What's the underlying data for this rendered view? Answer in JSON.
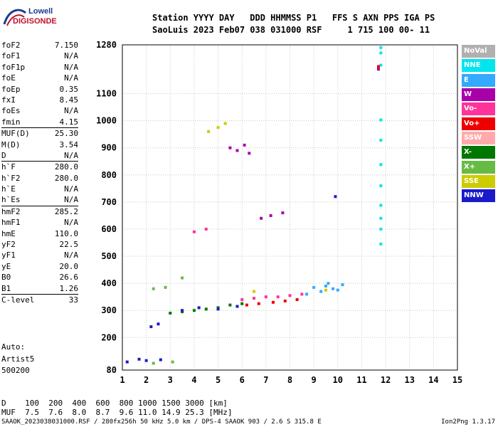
{
  "logo": {
    "line1": "Lowell",
    "line2": "DIGISONDE"
  },
  "header": {
    "line1": "Station YYYY DAY   DDD HHMMSS P1   FFS S AXN PPS IGA PS",
    "line2": "SaoLuis 2023 Feb07 038 031000 RSF     1 715 100 00- 11"
  },
  "params": [
    {
      "k": "foF2",
      "v": "7.150"
    },
    {
      "k": "foF1",
      "v": "N/A"
    },
    {
      "k": "foF1p",
      "v": "N/A"
    },
    {
      "k": "foE",
      "v": "N/A"
    },
    {
      "k": "foEp",
      "v": "0.35"
    },
    {
      "k": "fxI",
      "v": "8.45"
    },
    {
      "k": "foEs",
      "v": "N/A"
    },
    {
      "k": "fmin",
      "v": "4.15"
    },
    {
      "k": "MUF(D)",
      "v": "25.30"
    },
    {
      "k": "M(D)",
      "v": "3.54"
    },
    {
      "k": "D",
      "v": "N/A"
    },
    {
      "k": "h`F",
      "v": "280.0"
    },
    {
      "k": "h`F2",
      "v": "280.0"
    },
    {
      "k": "h`E",
      "v": "N/A"
    },
    {
      "k": "h`Es",
      "v": "N/A"
    },
    {
      "k": "hmF2",
      "v": "285.2"
    },
    {
      "k": "hmF1",
      "v": "N/A"
    },
    {
      "k": "hmE",
      "v": "110.0"
    },
    {
      "k": "yF2",
      "v": "22.5"
    },
    {
      "k": "yF1",
      "v": "N/A"
    },
    {
      "k": "yE",
      "v": "20.0"
    },
    {
      "k": "B0",
      "v": "26.6"
    },
    {
      "k": "B1",
      "v": "1.26"
    },
    {
      "k": "C-level",
      "v": "33"
    }
  ],
  "extra": {
    "auto": "Auto:",
    "artist": "Artist5",
    "code": "500200"
  },
  "legend": [
    {
      "label": "NoVal",
      "color": "#b0b0b0"
    },
    {
      "label": "NNE",
      "color": "#00e5ee"
    },
    {
      "label": "E",
      "color": "#33aaff"
    },
    {
      "label": "W",
      "color": "#aa00aa"
    },
    {
      "label": "Vo-",
      "color": "#ff3399"
    },
    {
      "label": "Vo+",
      "color": "#ee0000"
    },
    {
      "label": "SSW",
      "color": "#ffaaaa"
    },
    {
      "label": "X-",
      "color": "#007700"
    },
    {
      "label": "X+",
      "color": "#66bb44"
    },
    {
      "label": "SSE",
      "color": "#cccc00"
    },
    {
      "label": "NNW",
      "color": "#1a1acc"
    }
  ],
  "chart_data": {
    "type": "scatter",
    "title": "",
    "xlabel": "",
    "ylabel": "",
    "xlim": [
      1,
      15
    ],
    "ylim": [
      80,
      1280
    ],
    "x_ticks": [
      "1",
      "2",
      "3",
      "4",
      "5",
      "6",
      "7",
      "8",
      "9",
      "10",
      "11",
      "12",
      "13",
      "14",
      "15"
    ],
    "y_ticks": [
      "80",
      "200",
      "300",
      "400",
      "500",
      "600",
      "700",
      "800",
      "900",
      "1000",
      "1100",
      "1280"
    ],
    "grid": true,
    "legend_position": "right",
    "series": [
      {
        "name": "NNE",
        "points": [
          [
            11.8,
            1270
          ],
          [
            11.8,
            1250
          ],
          [
            11.8,
            1205
          ],
          [
            11.8,
            1003
          ],
          [
            11.8,
            928
          ],
          [
            11.8,
            838
          ],
          [
            11.8,
            760
          ],
          [
            11.8,
            688
          ],
          [
            11.8,
            640
          ],
          [
            11.8,
            600
          ],
          [
            11.8,
            545
          ]
        ]
      },
      {
        "name": "E",
        "points": [
          [
            9.5,
            390
          ],
          [
            9.8,
            380
          ],
          [
            10,
            375
          ],
          [
            9.3,
            370
          ],
          [
            9,
            385
          ],
          [
            10.2,
            395
          ],
          [
            8.7,
            360
          ],
          [
            9.6,
            400
          ]
        ]
      },
      {
        "name": "W",
        "points": [
          [
            5.5,
            900
          ],
          [
            5.8,
            890
          ],
          [
            6.1,
            910
          ],
          [
            6.3,
            880
          ],
          [
            6.8,
            640
          ],
          [
            7.2,
            650
          ],
          [
            7.7,
            660
          ],
          [
            11.7,
            1190
          ]
        ]
      },
      {
        "name": "Vo-",
        "points": [
          [
            6,
            340
          ],
          [
            6.5,
            345
          ],
          [
            7,
            350
          ],
          [
            7.5,
            350
          ],
          [
            8,
            355
          ],
          [
            8.5,
            360
          ],
          [
            4,
            590
          ],
          [
            4.5,
            600
          ]
        ]
      },
      {
        "name": "Vo+",
        "points": [
          [
            6.2,
            320
          ],
          [
            6.7,
            325
          ],
          [
            7.3,
            330
          ],
          [
            7.8,
            335
          ],
          [
            8.3,
            340
          ],
          [
            11.7,
            1200
          ]
        ]
      },
      {
        "name": "X-",
        "points": [
          [
            3,
            290
          ],
          [
            3.5,
            295
          ],
          [
            4,
            300
          ],
          [
            4.5,
            305
          ],
          [
            5,
            310
          ],
          [
            5.5,
            320
          ],
          [
            6,
            325
          ]
        ]
      },
      {
        "name": "X+",
        "points": [
          [
            2.3,
            380
          ],
          [
            2.8,
            385
          ],
          [
            3.5,
            420
          ],
          [
            2.3,
            105
          ],
          [
            3.1,
            110
          ]
        ]
      },
      {
        "name": "SSE",
        "points": [
          [
            4.6,
            960
          ],
          [
            5,
            975
          ],
          [
            5.3,
            990
          ],
          [
            6.5,
            370
          ],
          [
            9.5,
            375
          ]
        ]
      },
      {
        "name": "NNW",
        "points": [
          [
            1.2,
            110
          ],
          [
            1.7,
            120
          ],
          [
            2,
            115
          ],
          [
            2.6,
            118
          ],
          [
            2.2,
            240
          ],
          [
            2.5,
            250
          ],
          [
            3.5,
            300
          ],
          [
            4.2,
            310
          ],
          [
            5,
            305
          ],
          [
            5.8,
            315
          ],
          [
            9.9,
            720
          ]
        ]
      }
    ]
  },
  "bottom": {
    "d_row": "D    100  200  400  600  800 1000 1500 3000 [km]",
    "muf_row": "MUF  7.5  7.6  8.0  8.7  9.6 11.0 14.9 25.3 [MHz]"
  },
  "footer": {
    "left": "SAAOK_2023038031000.RSF / 280fx256h 50 kHz 5.0 km / DPS-4 SAAOK 903 / 2.6 S 315.8 E",
    "right": "Ion2Png 1.3.17"
  }
}
